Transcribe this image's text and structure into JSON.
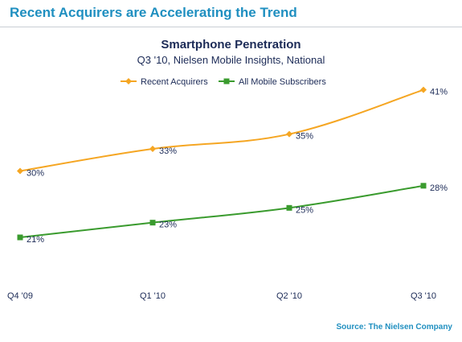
{
  "header": {
    "headline": "Recent Acquirers are Accelerating the Trend"
  },
  "footer": {
    "source": "Source: The Nielsen Company"
  },
  "colors": {
    "recent_acquirers": "#f5a623",
    "all_mobile_subscribers": "#3a9b2e",
    "headline": "#1f8fc0",
    "title": "#1c2b57",
    "rule": "#c9ced4"
  },
  "chart_data": {
    "type": "line",
    "title": "Smartphone Penetration",
    "subtitle": "Q3 '10, Nielsen Mobile Insights, National",
    "categories": [
      "Q4 '09",
      "Q1 '10",
      "Q2 '10",
      "Q3 '10"
    ],
    "ylim": [
      15,
      45
    ],
    "grid": false,
    "legend_position": "top-center",
    "series": [
      {
        "name": "Recent Acquirers",
        "values": [
          30,
          33,
          35,
          41
        ],
        "labels": [
          "30%",
          "33%",
          "35%",
          "41%"
        ],
        "marker": "diamond",
        "color": "#f5a623"
      },
      {
        "name": "All Mobile Subscribers",
        "values": [
          21,
          23,
          25,
          28
        ],
        "labels": [
          "21%",
          "23%",
          "25%",
          "28%"
        ],
        "marker": "square",
        "color": "#3a9b2e"
      }
    ]
  }
}
